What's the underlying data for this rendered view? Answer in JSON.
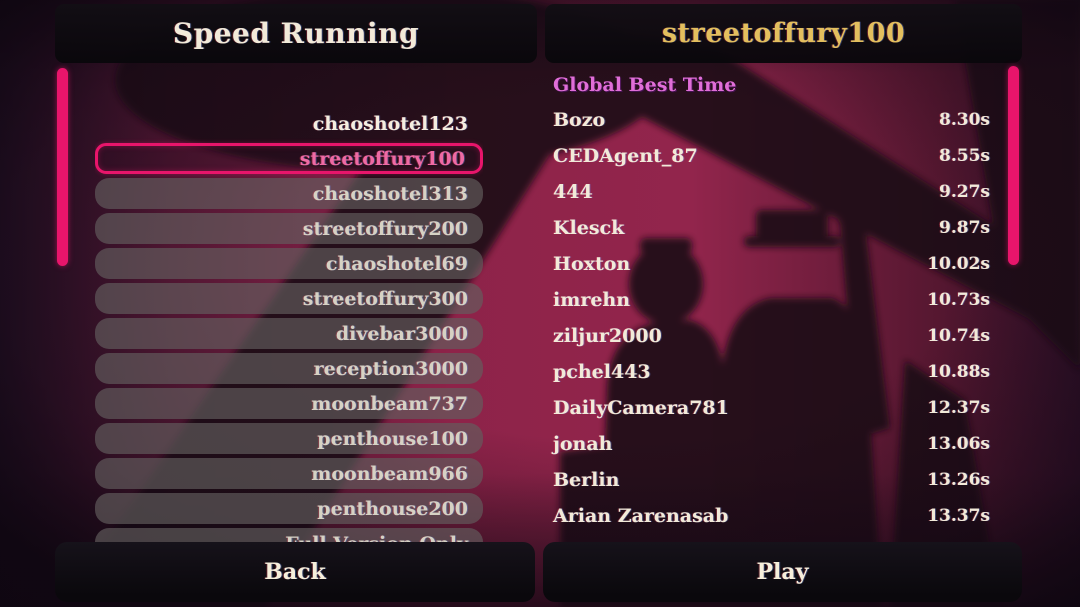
{
  "left_panel": {
    "title": "Speed Running",
    "items": [
      {
        "label": "chaoshotel123",
        "state": "plain"
      },
      {
        "label": "streetoffury100",
        "state": "selected"
      },
      {
        "label": "chaoshotel313",
        "state": "pill"
      },
      {
        "label": "streetoffury200",
        "state": "pill"
      },
      {
        "label": "chaoshotel69",
        "state": "pill"
      },
      {
        "label": "streetoffury300",
        "state": "pill"
      },
      {
        "label": "divebar3000",
        "state": "pill"
      },
      {
        "label": "reception3000",
        "state": "pill"
      },
      {
        "label": "moonbeam737",
        "state": "pill"
      },
      {
        "label": "penthouse100",
        "state": "pill"
      },
      {
        "label": "moonbeam966",
        "state": "pill"
      },
      {
        "label": "penthouse200",
        "state": "pill"
      },
      {
        "label": "Full Version Only",
        "state": "pill"
      }
    ],
    "back_label": "Back"
  },
  "right_panel": {
    "title": "streetoffury100",
    "section_label": "Global Best Time",
    "entries": [
      {
        "name": "Bozo",
        "time": "8.30s"
      },
      {
        "name": "CEDAgent_87",
        "time": "8.55s"
      },
      {
        "name": "444",
        "time": "9.27s"
      },
      {
        "name": "Klesck",
        "time": "9.87s"
      },
      {
        "name": "Hoxton",
        "time": "10.02s"
      },
      {
        "name": "imrehn",
        "time": "10.73s"
      },
      {
        "name": "ziljur2000",
        "time": "10.74s"
      },
      {
        "name": "pchel443",
        "time": "10.88s"
      },
      {
        "name": "DailyCamera781",
        "time": "12.37s"
      },
      {
        "name": "jonah",
        "time": "13.06s"
      },
      {
        "name": "Berlin",
        "time": "13.26s"
      },
      {
        "name": "Arian Zarenasab",
        "time": "13.37s"
      }
    ],
    "play_label": "Play"
  },
  "colors": {
    "accent_pink": "#e8156b",
    "title_gold": "#e3bf5e",
    "text_cream": "#f2ead9",
    "selected_text": "#ef6aa4",
    "section_label_pink": "#e06ed8",
    "background_crimson": "#8e2349",
    "button_dark": "#0d0a0e"
  }
}
